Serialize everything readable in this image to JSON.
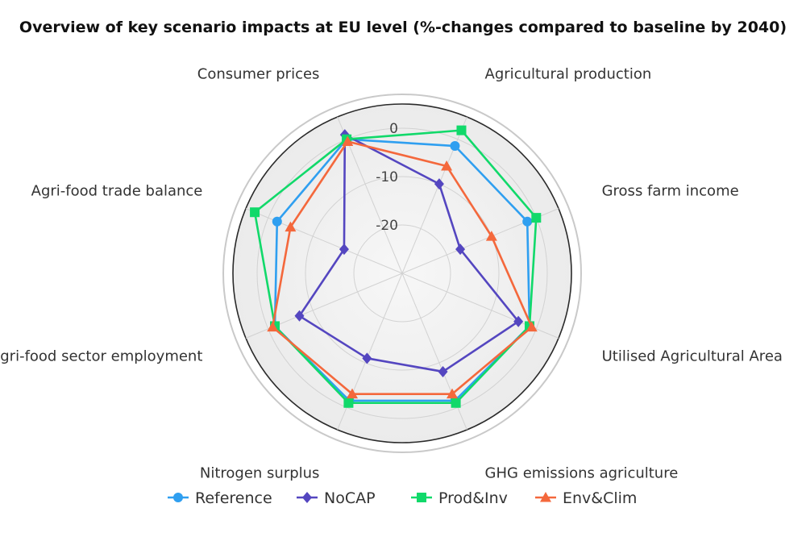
{
  "chart_data": {
    "type": "radar",
    "title": "Overview of key scenario impacts at EU level (%-changes compared to baseline by 2040)",
    "axes": [
      "Agricultural production",
      "Gross farm income",
      "Utilised Agricultural Area",
      "GHG emissions agriculture",
      "Nitrogen surplus",
      "Agri-food sector employment",
      "Agri-food trade balance",
      "Consumer prices"
    ],
    "radial_range": [
      -30,
      5
    ],
    "radial_ticks": [
      0,
      -10,
      -20
    ],
    "radial_tick_labels": [
      "0",
      "-10",
      "-20"
    ],
    "series": [
      {
        "name": "Reference",
        "color": "#2f9ff0",
        "marker": "circle",
        "values": [
          -1.5,
          -2,
          -1.5,
          -1.5,
          -1.5,
          -1.5,
          -2,
          0
        ]
      },
      {
        "name": "NoCAP",
        "color": "#5446c0",
        "marker": "diamond",
        "values": [
          -10,
          -17,
          -4,
          -8,
          -11,
          -7,
          -17,
          1
        ]
      },
      {
        "name": "Prod&Inv",
        "color": "#11d96a",
        "marker": "square",
        "values": [
          2,
          0,
          -1.5,
          -1,
          -1,
          -1.5,
          3,
          0
        ]
      },
      {
        "name": "Env&Clim",
        "color": "#f4683c",
        "marker": "triangle",
        "values": [
          -6,
          -10,
          -1,
          -3,
          -3,
          -1,
          -5,
          -0.5
        ]
      }
    ]
  }
}
